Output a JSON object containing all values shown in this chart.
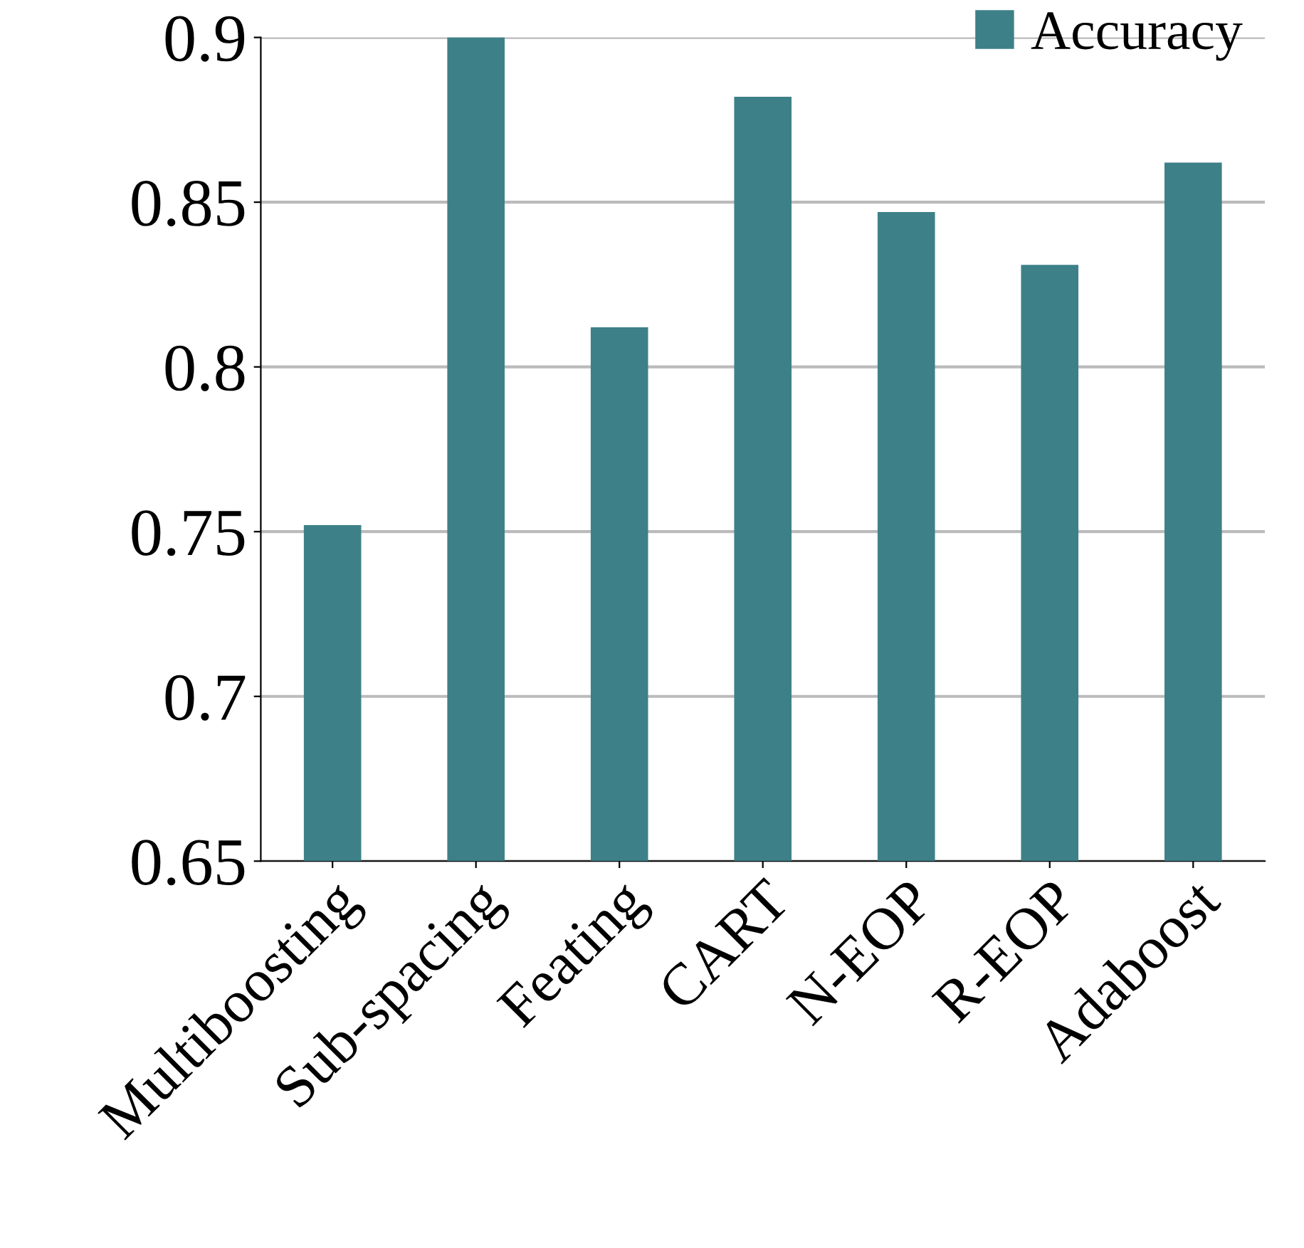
{
  "chart_data": {
    "type": "bar",
    "categories": [
      "Multiboosting",
      "Sub-spacing",
      "Feating",
      "CART",
      "N-EOP",
      "R-EOP",
      "Adaboost"
    ],
    "series": [
      {
        "name": "Accuracy",
        "color": "#3d8088",
        "values": [
          0.752,
          0.9,
          0.812,
          0.882,
          0.847,
          0.831,
          0.862
        ]
      }
    ],
    "ylim": [
      0.65,
      0.9
    ],
    "yticks": [
      0.65,
      0.7,
      0.75,
      0.8,
      0.85,
      0.9
    ],
    "grid": "y",
    "legend": "top right"
  }
}
